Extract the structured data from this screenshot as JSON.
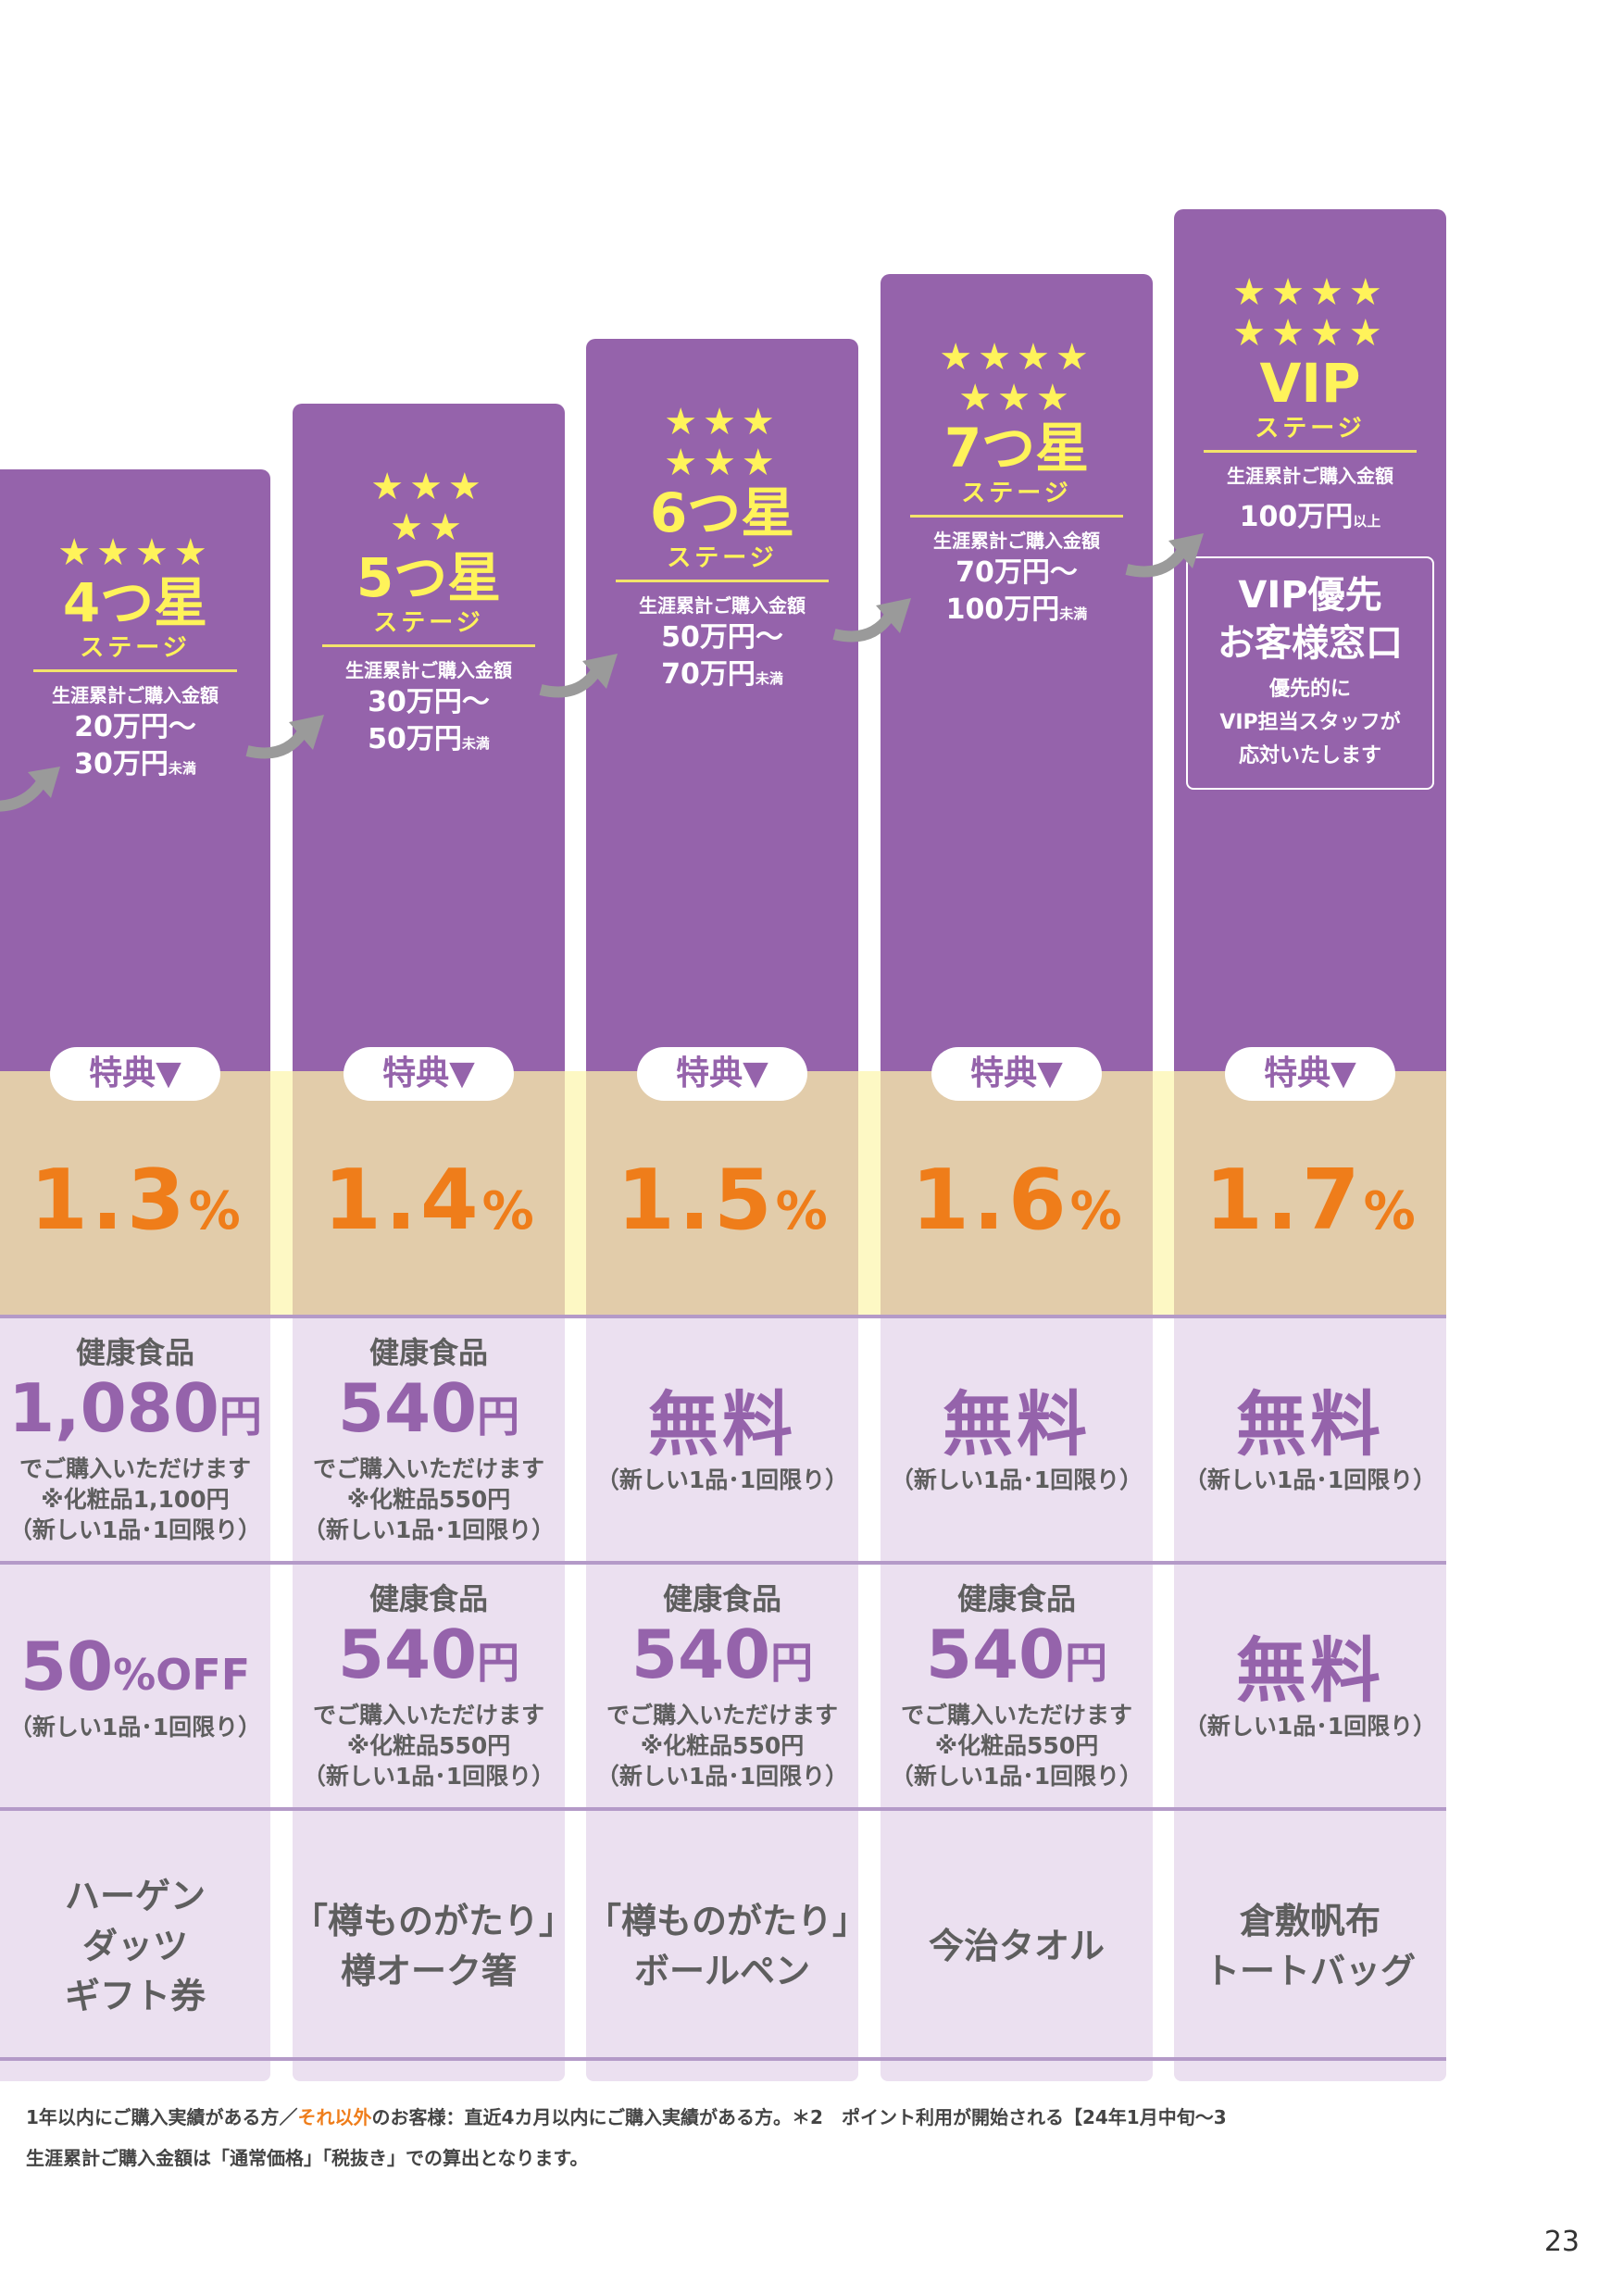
{
  "columns": [
    {
      "stars": "★★★★",
      "stars2": "",
      "name": "4つ星",
      "sub": "ステージ",
      "cum_label": "生涯累計ご購入金額",
      "amount1": "20万円〜",
      "amount2": "30万円",
      "amount2_suffix": "未満",
      "perk": "特典▼",
      "rate": "1.3",
      "rate_unit": "%",
      "row1": {
        "cat": "健康食品",
        "big": "1,080",
        "unit": "円",
        "l1": "でご購入いただけます",
        "l2": "※化粧品1,100円",
        "l3": "（新しい1品･1回限り）"
      },
      "row2": {
        "big": "50",
        "unit": "%OFF",
        "l1": "（新しい1品･1回限り）"
      },
      "gift": [
        "ハーゲン",
        "ダッツ",
        "ギフト券"
      ]
    },
    {
      "stars": "★★★",
      "stars2": "★★",
      "name": "5つ星",
      "sub": "ステージ",
      "cum_label": "生涯累計ご購入金額",
      "amount1": "30万円〜",
      "amount2": "50万円",
      "amount2_suffix": "未満",
      "perk": "特典▼",
      "rate": "1.4",
      "rate_unit": "%",
      "row1": {
        "cat": "健康食品",
        "big": "540",
        "unit": "円",
        "l1": "でご購入いただけます",
        "l2": "※化粧品550円",
        "l3": "（新しい1品･1回限り）"
      },
      "row2": {
        "cat": "健康食品",
        "big": "540",
        "unit": "円",
        "l1": "でご購入いただけます",
        "l2": "※化粧品550円",
        "l3": "（新しい1品･1回限り）"
      },
      "gift": [
        "「樽ものがたり」",
        "樽オーク箸"
      ]
    },
    {
      "stars": "★★★",
      "stars2": "★★★",
      "name": "6つ星",
      "sub": "ステージ",
      "cum_label": "生涯累計ご購入金額",
      "amount1": "50万円〜",
      "amount2": "70万円",
      "amount2_suffix": "未満",
      "perk": "特典▼",
      "rate": "1.5",
      "rate_unit": "%",
      "row1": {
        "free": "無料",
        "l1": "（新しい1品･1回限り）"
      },
      "row2": {
        "cat": "健康食品",
        "big": "540",
        "unit": "円",
        "l1": "でご購入いただけます",
        "l2": "※化粧品550円",
        "l3": "（新しい1品･1回限り）"
      },
      "gift": [
        "「樽ものがたり」",
        "ボールペン"
      ]
    },
    {
      "stars": "★★★★",
      "stars2": "★★★",
      "name": "7つ星",
      "sub": "ステージ",
      "cum_label": "生涯累計ご購入金額",
      "amount1": "70万円〜",
      "amount2": "100万円",
      "amount2_suffix": "未満",
      "perk": "特典▼",
      "rate": "1.6",
      "rate_unit": "%",
      "row1": {
        "free": "無料",
        "l1": "（新しい1品･1回限り）"
      },
      "row2": {
        "cat": "健康食品",
        "big": "540",
        "unit": "円",
        "l1": "でご購入いただけます",
        "l2": "※化粧品550円",
        "l3": "（新しい1品･1回限り）"
      },
      "gift": [
        "今治タオル"
      ]
    },
    {
      "stars": "★★★★",
      "stars2": "★★★★",
      "name": "VIP",
      "sub": "ステージ",
      "cum_label": "生涯累計ご購入金額",
      "amount1": "100万円",
      "amount1_suffix": "以上",
      "vip_title1": "VIP優先",
      "vip_title2": "お客様窓口",
      "vip_desc1": "優先的に",
      "vip_desc2": "VIP担当スタッフが",
      "vip_desc3": "応対いたします",
      "perk": "特典▼",
      "rate": "1.7",
      "rate_unit": "%",
      "row1": {
        "free": "無料",
        "l1": "（新しい1品･1回限り）"
      },
      "row2": {
        "free": "無料",
        "l1": "（新しい1品･1回限り）"
      },
      "gift": [
        "倉敷帆布",
        "トートバッグ"
      ]
    }
  ],
  "footnote": {
    "line1_a": "1年以内にご購入実績がある方／",
    "line1_hl": "それ以外",
    "line1_b": "のお客様：直近4カ月以内にご購入実績がある方。＊2　ポイント利用が開始される【24年1月中旬〜3",
    "line2": "生涯累計ご購入金額は「通常価格」「税抜き」での算出となります。"
  },
  "page_number": "23",
  "colors": {
    "purple": "#9563ab",
    "star_yellow": "#fff35a",
    "rate_orange": "#ef7d1a",
    "band_tan": "#e2ccaa",
    "cell_lilac": "#ebe0f0"
  }
}
